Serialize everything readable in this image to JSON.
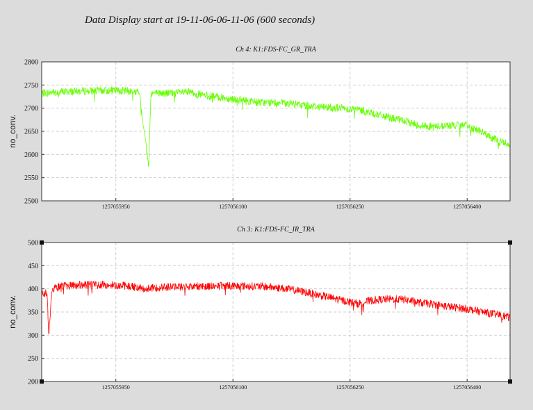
{
  "page": {
    "title": "Data Display start at 19-11-06-06-11-06 (600 seconds)"
  },
  "chart_data": [
    {
      "type": "line",
      "title": "Ch 4: K1:FDS-FC_GR_TRA",
      "xlabel": "",
      "ylabel": "no_conv.",
      "ylim": [
        2500,
        2800
      ],
      "yticks": [
        2500,
        2550,
        2600,
        2650,
        2700,
        2750,
        2800
      ],
      "xlim": [
        1257055855,
        1257056455
      ],
      "xticks": [
        1257055950,
        1257056100,
        1257056250,
        1257056400
      ],
      "grid": true,
      "color": "#66ff00",
      "series": [
        {
          "x": [
            1257055855,
            1257055875,
            1257055895,
            1257055915,
            1257055935,
            1257055950,
            1257055965,
            1257055980,
            1257055992,
            1257055995,
            1257056010,
            1257056025,
            1257056045,
            1257056060,
            1257056075,
            1257056090,
            1257056100,
            1257056120,
            1257056140,
            1257056160,
            1257056180,
            1257056200,
            1257056220,
            1257056240,
            1257056260,
            1257056280,
            1257056300,
            1257056320,
            1257056340,
            1257056355,
            1257056370,
            1257056385,
            1257056400,
            1257056415,
            1257056430,
            1257056445,
            1257056455
          ],
          "values": [
            2732,
            2735,
            2736,
            2737,
            2738,
            2738,
            2737,
            2735,
            2575,
            2733,
            2732,
            2733,
            2734,
            2728,
            2725,
            2722,
            2720,
            2715,
            2712,
            2711,
            2708,
            2705,
            2702,
            2700,
            2697,
            2688,
            2680,
            2672,
            2662,
            2660,
            2662,
            2663,
            2662,
            2652,
            2637,
            2627,
            2622
          ]
        }
      ]
    },
    {
      "type": "line",
      "title": "Ch 3: K1:FDS-FC_IR_TRA",
      "xlabel": "",
      "ylabel": "no_conv.",
      "ylim": [
        200,
        500
      ],
      "yticks": [
        200,
        250,
        300,
        350,
        400,
        450,
        500
      ],
      "xlim": [
        1257055855,
        1257056455
      ],
      "xticks": [
        1257055950,
        1257056100,
        1257056250,
        1257056400
      ],
      "grid": true,
      "color": "#ff0000",
      "series": [
        {
          "x": [
            1257055855,
            1257055862,
            1257055864,
            1257055868,
            1257055880,
            1257055900,
            1257055930,
            1257055960,
            1257055975,
            1257055990,
            1257056010,
            1257056040,
            1257056070,
            1257056100,
            1257056120,
            1257056140,
            1257056160,
            1257056180,
            1257056200,
            1257056220,
            1257056240,
            1257056260,
            1257056280,
            1257056300,
            1257056320,
            1257056340,
            1257056360,
            1257056380,
            1257056400,
            1257056420,
            1257056440,
            1257056455
          ],
          "values": [
            392,
            390,
            300,
            400,
            406,
            408,
            409,
            407,
            404,
            400,
            404,
            405,
            406,
            407,
            406,
            405,
            402,
            397,
            390,
            383,
            375,
            368,
            376,
            378,
            377,
            370,
            366,
            361,
            357,
            350,
            344,
            338
          ]
        }
      ]
    }
  ]
}
